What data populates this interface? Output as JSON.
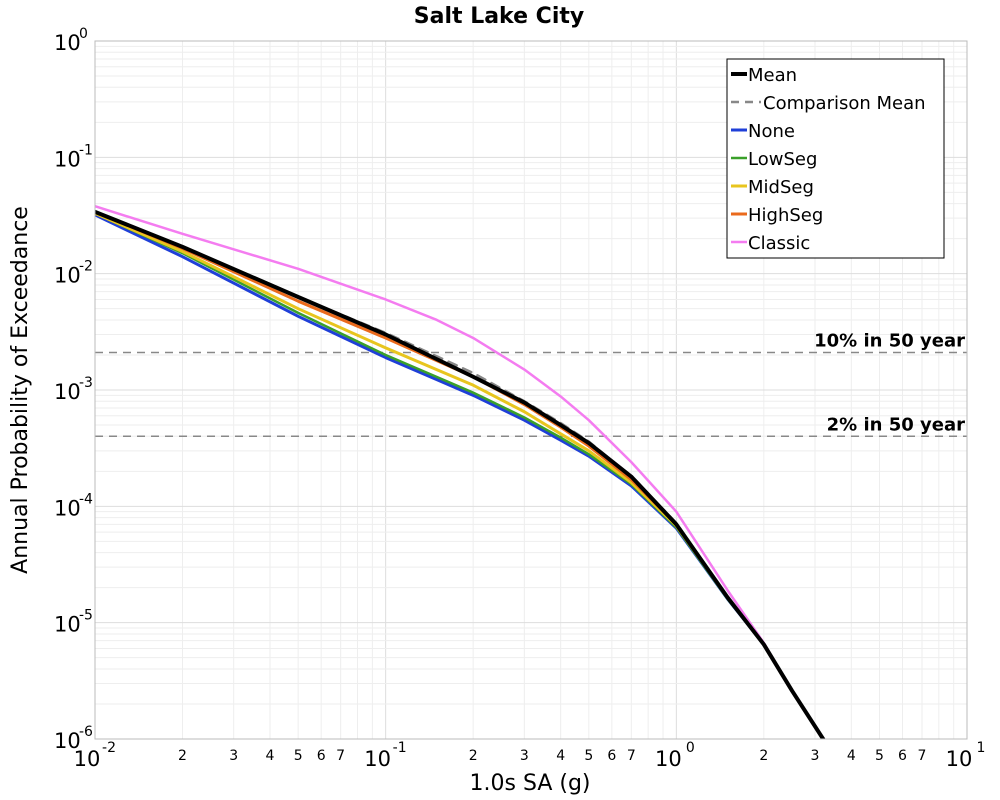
{
  "chart_data": {
    "type": "line",
    "title": "Salt Lake City",
    "xlabel": "1.0s SA (g)",
    "ylabel": "Annual Probability of Exceedance",
    "x_scale": "log",
    "y_scale": "log",
    "xlim": [
      0.01,
      10
    ],
    "ylim": [
      1e-06,
      1
    ],
    "grid": true,
    "legend_position": "top-right",
    "x_major_ticks": [
      {
        "value": 0.01,
        "base": "10",
        "exp": "-2"
      },
      {
        "value": 0.1,
        "base": "10",
        "exp": "-1"
      },
      {
        "value": 1,
        "base": "10",
        "exp": "0"
      },
      {
        "value": 10,
        "base": "10",
        "exp": "1"
      }
    ],
    "x_minor_tick_labels": [
      "2",
      "3",
      "4",
      "5",
      "6",
      "7"
    ],
    "y_major_ticks": [
      {
        "value": 1,
        "base": "10",
        "exp": "0"
      },
      {
        "value": 0.1,
        "base": "10",
        "exp": "-1"
      },
      {
        "value": 0.01,
        "base": "10",
        "exp": "-2"
      },
      {
        "value": 0.001,
        "base": "10",
        "exp": "-3"
      },
      {
        "value": 0.0001,
        "base": "10",
        "exp": "-4"
      },
      {
        "value": 1e-05,
        "base": "10",
        "exp": "-5"
      },
      {
        "value": 1e-06,
        "base": "10",
        "exp": "-6"
      }
    ],
    "reference_lines": [
      {
        "label": "10% in 50 year",
        "y": 0.0021,
        "color": "#888888"
      },
      {
        "label": "2% in 50 year",
        "y": 0.0004,
        "color": "#888888"
      }
    ],
    "series": [
      {
        "name": "None",
        "color": "#1f3fd8",
        "width": 3,
        "dash": "",
        "x": [
          0.01,
          0.02,
          0.05,
          0.1,
          0.2,
          0.3,
          0.4,
          0.5,
          0.7,
          1.0,
          1.5,
          2.0,
          2.5,
          3.2
        ],
        "y": [
          0.032,
          0.014,
          0.0043,
          0.0019,
          0.0009,
          0.00055,
          0.00037,
          0.00027,
          0.00015,
          6.5e-05,
          1.6e-05,
          6.5e-06,
          2.6e-06,
          1e-06
        ]
      },
      {
        "name": "LowSeg",
        "color": "#3aa02a",
        "width": 2.5,
        "dash": "",
        "x": [
          0.01,
          0.02,
          0.05,
          0.1,
          0.2,
          0.3,
          0.4,
          0.5,
          0.7,
          1.0,
          1.5,
          2.0,
          2.5,
          3.2
        ],
        "y": [
          0.033,
          0.015,
          0.0046,
          0.002,
          0.00095,
          0.00058,
          0.00039,
          0.00028,
          0.000155,
          6.6e-05,
          1.6e-05,
          6.5e-06,
          2.6e-06,
          1e-06
        ]
      },
      {
        "name": "MidSeg",
        "color": "#e8c51e",
        "width": 3,
        "dash": "",
        "x": [
          0.01,
          0.02,
          0.05,
          0.1,
          0.2,
          0.3,
          0.4,
          0.5,
          0.7,
          1.0,
          1.5,
          2.0,
          2.5,
          3.2
        ],
        "y": [
          0.033,
          0.0155,
          0.005,
          0.0023,
          0.0011,
          0.00065,
          0.00042,
          0.0003,
          0.00016,
          6.8e-05,
          1.65e-05,
          6.5e-06,
          2.6e-06,
          1e-06
        ]
      },
      {
        "name": "HighSeg",
        "color": "#ea6a1c",
        "width": 3,
        "dash": "",
        "x": [
          0.01,
          0.02,
          0.05,
          0.1,
          0.2,
          0.3,
          0.4,
          0.5,
          0.7,
          1.0,
          1.5,
          2.0,
          2.5,
          3.2
        ],
        "y": [
          0.034,
          0.0165,
          0.0058,
          0.0028,
          0.0013,
          0.00075,
          0.00048,
          0.00033,
          0.00017,
          7e-05,
          1.65e-05,
          6.5e-06,
          2.6e-06,
          1e-06
        ]
      },
      {
        "name": "Classic",
        "color": "#f47cf0",
        "width": 2.5,
        "dash": "",
        "x": [
          0.01,
          0.02,
          0.05,
          0.1,
          0.15,
          0.2,
          0.3,
          0.4,
          0.5,
          0.7,
          1.0,
          1.5,
          2.0,
          2.5,
          3.2
        ],
        "y": [
          0.038,
          0.022,
          0.011,
          0.006,
          0.004,
          0.0028,
          0.0015,
          0.00088,
          0.00055,
          0.00024,
          9e-05,
          1.9e-05,
          6.7e-06,
          2.6e-06,
          1e-06
        ]
      },
      {
        "name": "Comparison Mean",
        "color": "#888888",
        "width": 2.5,
        "dash": "9,7",
        "x": [
          0.01,
          0.02,
          0.05,
          0.1,
          0.2,
          0.3,
          0.4,
          0.5,
          0.7,
          1.0,
          1.5,
          2.0,
          2.5,
          3.2
        ],
        "y": [
          0.034,
          0.017,
          0.0063,
          0.0031,
          0.0014,
          0.0008,
          0.00052,
          0.00036,
          0.00018,
          7.2e-05,
          1.65e-05,
          6.5e-06,
          2.6e-06,
          1e-06
        ]
      },
      {
        "name": "Mean",
        "color": "#000000",
        "width": 4,
        "dash": "",
        "x": [
          0.01,
          0.02,
          0.05,
          0.1,
          0.2,
          0.3,
          0.4,
          0.5,
          0.7,
          1.0,
          1.5,
          2.0,
          2.5,
          3.2
        ],
        "y": [
          0.034,
          0.017,
          0.0063,
          0.003,
          0.0013,
          0.00078,
          0.0005,
          0.00035,
          0.00018,
          7e-05,
          1.65e-05,
          6.5e-06,
          2.6e-06,
          1e-06
        ]
      }
    ],
    "legend_order": [
      "Mean",
      "Comparison Mean",
      "None",
      "LowSeg",
      "MidSeg",
      "HighSeg",
      "Classic"
    ]
  }
}
